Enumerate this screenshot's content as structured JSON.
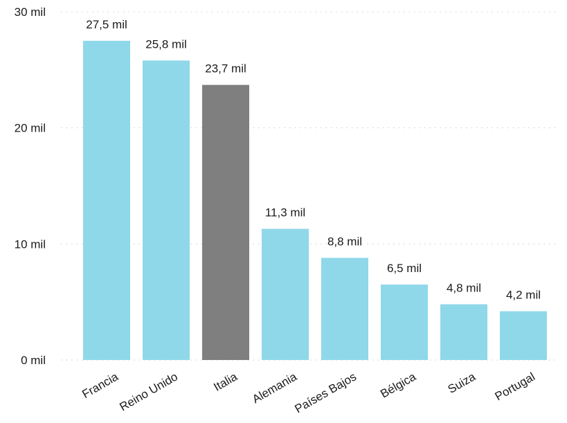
{
  "chart_data": {
    "type": "bar",
    "title": "",
    "xlabel": "",
    "ylabel": "",
    "ylim": [
      0,
      30
    ],
    "y_ticks": [
      0,
      10,
      20,
      30
    ],
    "y_tick_labels": [
      "0 mil",
      "10 mil",
      "20 mil",
      "30 mil"
    ],
    "grid": true,
    "categories": [
      "Francia",
      "Reino Unido",
      "Italia",
      "Alemania",
      "Países Bajos",
      "Bélgica",
      "Suiza",
      "Portugal"
    ],
    "values": [
      27.5,
      25.8,
      23.7,
      11.3,
      8.8,
      6.5,
      4.8,
      4.2
    ],
    "data_labels": [
      "27,5 mil",
      "25,8 mil",
      "23,7 mil",
      "11,3 mil",
      "8,8 mil",
      "6,5 mil",
      "4,8 mil",
      "4,2 mil"
    ],
    "colors": {
      "default": "#8fd8e9",
      "highlight": "#7f7f7f"
    },
    "highlight_category": "Italia"
  }
}
